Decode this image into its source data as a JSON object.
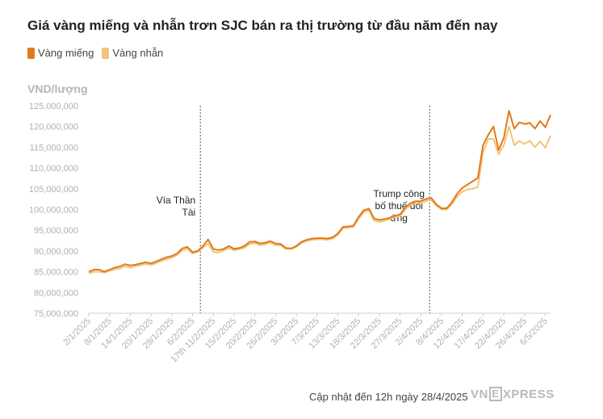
{
  "title": "Giá vàng miếng và nhẫn trơn SJC bán ra thị trường từ đầu năm đến nay",
  "legend": [
    {
      "label": "Vàng miếng",
      "color": "#e07b1c"
    },
    {
      "label": "Vàng nhẫn",
      "color": "#f2c37a"
    }
  ],
  "footer": "Cập nhật đến 12h ngày 28/4/2025",
  "logo": {
    "left": "VN",
    "box": "E",
    "right": "XPRESS"
  },
  "chart_data": {
    "type": "line",
    "ylabel": "VND/lượng",
    "ylim": [
      75000000,
      125000000
    ],
    "yticks": [
      {
        "value": 75000000,
        "label": "75,000,000"
      },
      {
        "value": 80000000,
        "label": "80,000,000"
      },
      {
        "value": 85000000,
        "label": "85,000,000"
      },
      {
        "value": 90000000,
        "label": "90,000,000"
      },
      {
        "value": 95000000,
        "label": "95,000,000"
      },
      {
        "value": 100000000,
        "label": "100,000,000"
      },
      {
        "value": 105000000,
        "label": "105,000,000"
      },
      {
        "value": 110000000,
        "label": "110,000,000"
      },
      {
        "value": 115000000,
        "label": "115,000,000"
      },
      {
        "value": 120000000,
        "label": "120,000,000"
      },
      {
        "value": 125000000,
        "label": "125,000,000"
      }
    ],
    "xticks": [
      {
        "index": 0,
        "label": "2/1/2025"
      },
      {
        "index": 4,
        "label": "8/1/2025"
      },
      {
        "index": 8,
        "label": "14/1/2025"
      },
      {
        "index": 12,
        "label": "20/1/2025"
      },
      {
        "index": 16,
        "label": "28/1/2025"
      },
      {
        "index": 20,
        "label": "6/2/2025"
      },
      {
        "index": 24,
        "label": "17th 11/2/2025"
      },
      {
        "index": 28,
        "label": "15/2/2025"
      },
      {
        "index": 32,
        "label": "20/2/2025"
      },
      {
        "index": 36,
        "label": "26/2/2025"
      },
      {
        "index": 40,
        "label": "3/3/2025"
      },
      {
        "index": 44,
        "label": "7/3/2025"
      },
      {
        "index": 48,
        "label": "13/3/2025"
      },
      {
        "index": 52,
        "label": "18/3/2025"
      },
      {
        "index": 56,
        "label": "22/3/2025"
      },
      {
        "index": 60,
        "label": "27/3/2025"
      },
      {
        "index": 64,
        "label": "2/4/2025"
      },
      {
        "index": 68,
        "label": "8/4/2025"
      },
      {
        "index": 72,
        "label": "12/4/2025"
      },
      {
        "index": 76,
        "label": "17/4/2025"
      },
      {
        "index": 80,
        "label": "22/4/2025"
      },
      {
        "index": 84,
        "label": "26/4/2025"
      },
      {
        "index": 88,
        "label": "6/5/2025"
      }
    ],
    "annotations": [
      {
        "index": 21.5,
        "lines": [
          "Vía Thần",
          "Tài"
        ]
      },
      {
        "index": 65.7,
        "lines": [
          "Trump công",
          "bố thuế đối",
          "ứng"
        ]
      }
    ],
    "series": [
      {
        "name": "Vàng miếng",
        "color": "#e07b1c",
        "values": [
          85000000,
          85500000,
          85500000,
          85000000,
          85500000,
          86000000,
          86300000,
          86800000,
          86500000,
          86700000,
          87000000,
          87300000,
          87000000,
          87500000,
          88000000,
          88500000,
          88800000,
          89400000,
          90600000,
          91000000,
          89700000,
          90000000,
          91200000,
          92800000,
          90500000,
          90200000,
          90500000,
          91200000,
          90500000,
          90700000,
          91200000,
          92200000,
          92300000,
          91800000,
          92000000,
          92400000,
          91800000,
          91700000,
          90700000,
          90600000,
          91200000,
          92200000,
          92700000,
          93000000,
          93100000,
          93100000,
          93000000,
          93300000,
          94200000,
          95800000,
          95900000,
          96100000,
          98200000,
          99800000,
          100200000,
          97800000,
          97500000,
          97700000,
          98000000,
          98500000,
          98800000,
          100500000,
          101500000,
          102000000,
          102000000,
          102500000,
          102800000,
          101200000,
          100300000,
          100300000,
          101800000,
          103800000,
          105200000,
          106000000,
          106800000,
          107600000,
          115500000,
          118000000,
          120000000,
          114300000,
          117300000,
          123800000,
          119500000,
          121000000,
          120600000,
          120900000,
          119500000,
          121300000,
          119800000,
          122800000
        ],
        "_note": "approximate daily closing prices read from the chart"
      },
      {
        "name": "Vàng nhẫn",
        "color": "#f2c37a",
        "values": [
          84600000,
          85000000,
          85000000,
          84800000,
          85200000,
          85600000,
          85800000,
          86300000,
          86000000,
          86300000,
          86600000,
          86900000,
          86600000,
          87100000,
          87600000,
          88000000,
          88400000,
          89000000,
          90100000,
          90600000,
          89400000,
          89800000,
          90800000,
          91800000,
          89800000,
          89600000,
          90100000,
          90700000,
          90200000,
          90400000,
          90800000,
          91700000,
          91900000,
          91400000,
          91600000,
          92000000,
          91400000,
          91400000,
          90500000,
          90500000,
          91000000,
          91900000,
          92400000,
          92700000,
          92800000,
          92800000,
          92700000,
          93000000,
          93900000,
          95500000,
          95600000,
          95800000,
          97800000,
          99300000,
          99800000,
          97300000,
          97000000,
          97300000,
          97700000,
          98100000,
          98400000,
          100000000,
          101000000,
          101500000,
          101500000,
          102000000,
          102300000,
          100900000,
          100000000,
          100000000,
          101300000,
          103100000,
          104300000,
          104800000,
          105000000,
          105400000,
          113800000,
          117000000,
          117000000,
          113300000,
          115500000,
          120000000,
          115500000,
          116500000,
          115800000,
          116600000,
          115000000,
          116400000,
          114900000,
          117800000
        ]
      }
    ]
  }
}
